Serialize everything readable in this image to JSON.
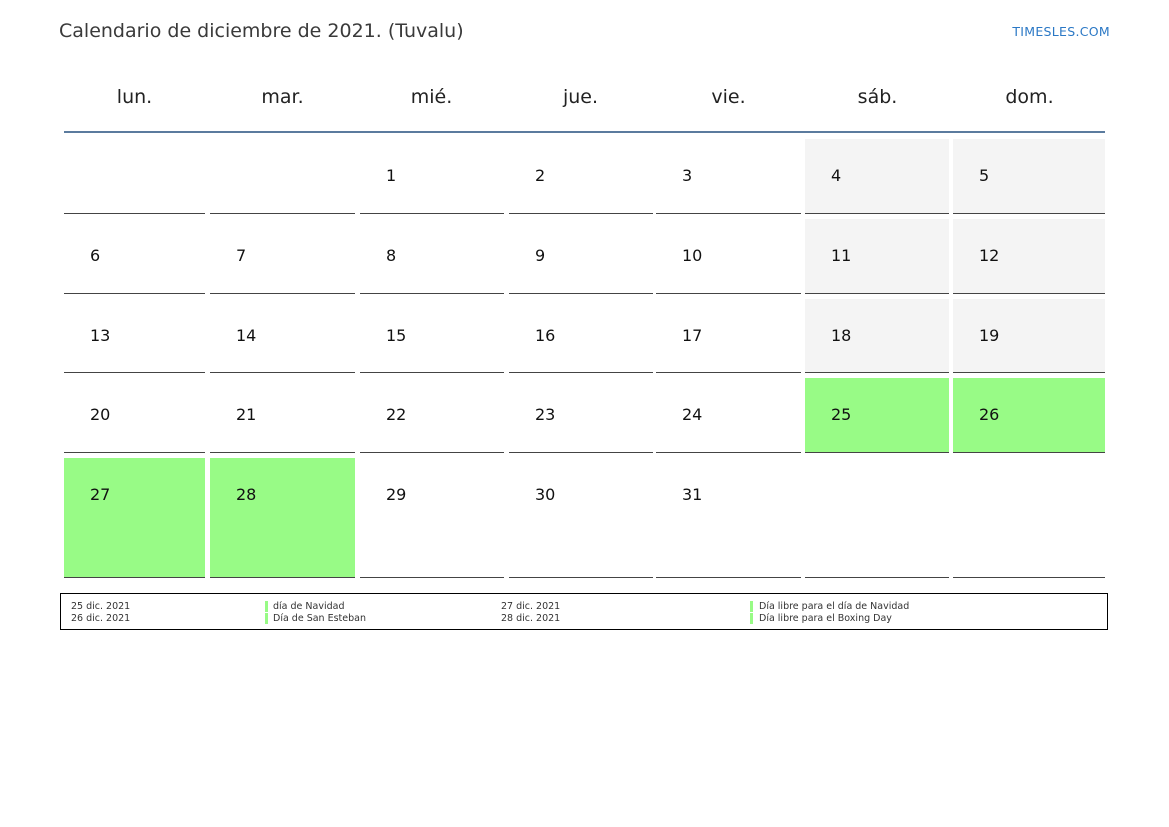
{
  "title": "Calendario de diciembre de 2021. (Tuvalu)",
  "site": "TIMESLES.COM",
  "weekdays": [
    "lun.",
    "mar.",
    "mié.",
    "jue.",
    "vie.",
    "sáb.",
    "dom."
  ],
  "weeks": [
    [
      {
        "d": ""
      },
      {
        "d": ""
      },
      {
        "d": "1"
      },
      {
        "d": "2"
      },
      {
        "d": "3"
      },
      {
        "d": "4",
        "t": "weekend"
      },
      {
        "d": "5",
        "t": "weekend"
      }
    ],
    [
      {
        "d": "6"
      },
      {
        "d": "7"
      },
      {
        "d": "8"
      },
      {
        "d": "9"
      },
      {
        "d": "10"
      },
      {
        "d": "11",
        "t": "weekend"
      },
      {
        "d": "12",
        "t": "weekend"
      }
    ],
    [
      {
        "d": "13"
      },
      {
        "d": "14"
      },
      {
        "d": "15"
      },
      {
        "d": "16"
      },
      {
        "d": "17"
      },
      {
        "d": "18",
        "t": "weekend"
      },
      {
        "d": "19",
        "t": "weekend"
      }
    ],
    [
      {
        "d": "20"
      },
      {
        "d": "21"
      },
      {
        "d": "22"
      },
      {
        "d": "23"
      },
      {
        "d": "24"
      },
      {
        "d": "25",
        "t": "holiday"
      },
      {
        "d": "26",
        "t": "holiday"
      }
    ],
    [
      {
        "d": "27",
        "t": "holiday"
      },
      {
        "d": "28",
        "t": "holiday"
      },
      {
        "d": "29"
      },
      {
        "d": "30"
      },
      {
        "d": "31"
      },
      {
        "d": ""
      },
      {
        "d": ""
      }
    ]
  ],
  "legend": {
    "left": [
      {
        "date": "25 dic. 2021",
        "name": "día de Navidad"
      },
      {
        "date": "26 dic. 2021",
        "name": "Día de San Esteban"
      }
    ],
    "right": [
      {
        "date": "27 dic. 2021",
        "name": "Día libre para el día de Navidad"
      },
      {
        "date": "28 dic. 2021",
        "name": "Día libre para el Boxing Day"
      }
    ]
  },
  "colors": {
    "holiday": "#98fb86",
    "weekend": "#f4f4f4",
    "header_rule": "#5b7b9e",
    "link": "#2b78c5"
  }
}
